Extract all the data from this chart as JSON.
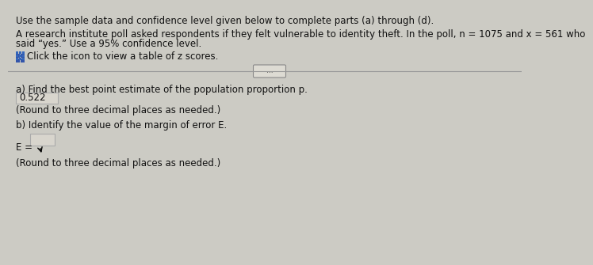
{
  "bg_color": "#cccbc4",
  "line1": "Use the sample data and confidence level given below to complete parts (a) through (d).",
  "line2": "A research institute poll asked respondents if they felt vulnerable to identity theft. In the poll, n = 1075 and x = 561 who",
  "line3": "said “yes.” Use a 95% confidence level.",
  "line4": "Click the icon to view a table of z scores.",
  "divider_label": "...",
  "part_a": "a) Find the best point estimate of the population proportion p.",
  "answer_a": "0.522",
  "note_a": "(Round to three decimal places as needed.)",
  "part_b": "b) Identify the value of the margin of error E.",
  "answer_b_label": "E =",
  "note_b": "(Round to three decimal places as needed.)",
  "font_size_body": 8.5,
  "font_size_answer": 8.5,
  "font_size_note": 8.5
}
